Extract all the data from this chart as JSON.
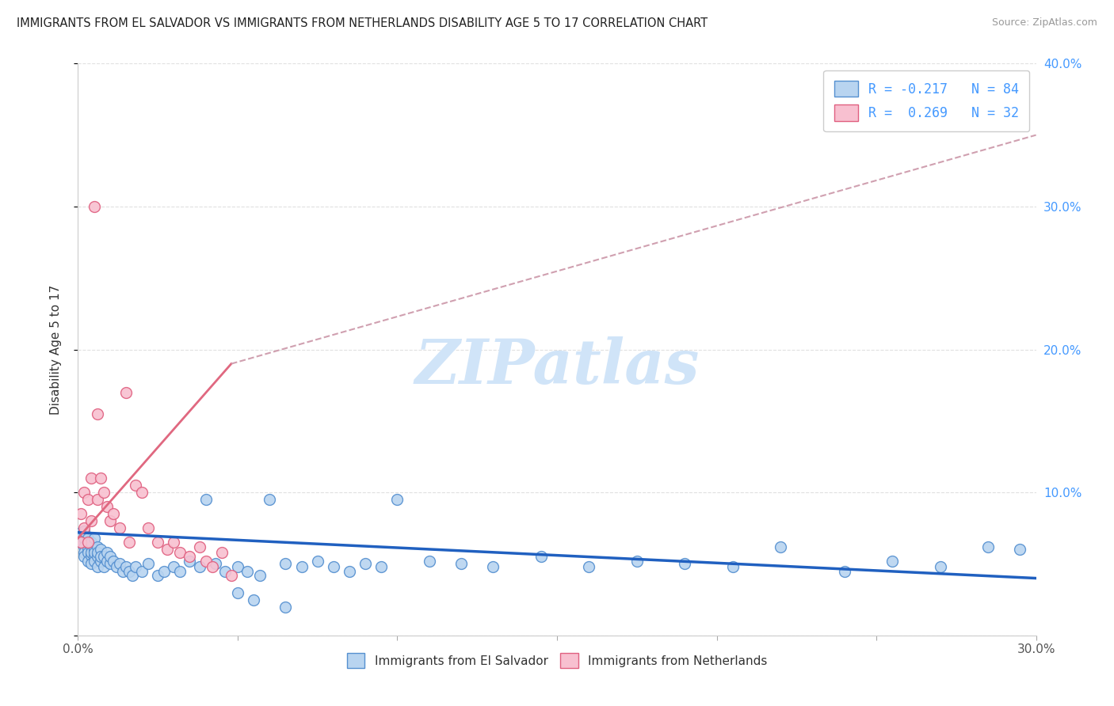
{
  "title": "IMMIGRANTS FROM EL SALVADOR VS IMMIGRANTS FROM NETHERLANDS DISABILITY AGE 5 TO 17 CORRELATION CHART",
  "source": "Source: ZipAtlas.com",
  "ylabel": "Disability Age 5 to 17",
  "series1_name": "Immigrants from El Salvador",
  "series2_name": "Immigrants from Netherlands",
  "series1_color": "#b8d4f0",
  "series2_color": "#f8c0d0",
  "series1_edge": "#5590d0",
  "series2_edge": "#e06080",
  "trend1_color": "#2060c0",
  "trend2_color": "#e06880",
  "trend2_dash_color": "#d0a0b0",
  "background_color": "#ffffff",
  "watermark": "ZIPatlas",
  "watermark_color": "#d0e4f8",
  "grid_color": "#e0e0e0",
  "xlim": [
    0.0,
    0.3
  ],
  "ylim": [
    0.0,
    0.4
  ],
  "legend_label1": "R = -0.217   N = 84",
  "legend_label2": "R =  0.269   N = 32",
  "legend_text_color": "#4499ff",
  "el_salvador_x": [
    0.001,
    0.001,
    0.001,
    0.002,
    0.002,
    0.002,
    0.002,
    0.002,
    0.003,
    0.003,
    0.003,
    0.003,
    0.003,
    0.004,
    0.004,
    0.004,
    0.004,
    0.004,
    0.005,
    0.005,
    0.005,
    0.005,
    0.005,
    0.006,
    0.006,
    0.006,
    0.006,
    0.007,
    0.007,
    0.007,
    0.008,
    0.008,
    0.009,
    0.009,
    0.01,
    0.01,
    0.011,
    0.012,
    0.013,
    0.014,
    0.015,
    0.016,
    0.017,
    0.018,
    0.02,
    0.022,
    0.025,
    0.027,
    0.03,
    0.032,
    0.035,
    0.038,
    0.04,
    0.043,
    0.046,
    0.05,
    0.053,
    0.057,
    0.06,
    0.065,
    0.07,
    0.075,
    0.08,
    0.085,
    0.09,
    0.095,
    0.1,
    0.11,
    0.12,
    0.13,
    0.145,
    0.16,
    0.175,
    0.19,
    0.205,
    0.22,
    0.24,
    0.255,
    0.27,
    0.285,
    0.295,
    0.05,
    0.055,
    0.065
  ],
  "el_salvador_y": [
    0.07,
    0.065,
    0.072,
    0.068,
    0.062,
    0.058,
    0.073,
    0.055,
    0.06,
    0.065,
    0.058,
    0.052,
    0.068,
    0.056,
    0.062,
    0.05,
    0.065,
    0.058,
    0.055,
    0.06,
    0.052,
    0.068,
    0.058,
    0.055,
    0.062,
    0.048,
    0.058,
    0.052,
    0.06,
    0.055,
    0.055,
    0.048,
    0.052,
    0.058,
    0.05,
    0.055,
    0.052,
    0.048,
    0.05,
    0.045,
    0.048,
    0.045,
    0.042,
    0.048,
    0.045,
    0.05,
    0.042,
    0.045,
    0.048,
    0.045,
    0.052,
    0.048,
    0.095,
    0.05,
    0.045,
    0.048,
    0.045,
    0.042,
    0.095,
    0.05,
    0.048,
    0.052,
    0.048,
    0.045,
    0.05,
    0.048,
    0.095,
    0.052,
    0.05,
    0.048,
    0.055,
    0.048,
    0.052,
    0.05,
    0.048,
    0.062,
    0.045,
    0.052,
    0.048,
    0.062,
    0.06,
    0.03,
    0.025,
    0.02
  ],
  "netherlands_x": [
    0.001,
    0.001,
    0.002,
    0.002,
    0.003,
    0.003,
    0.004,
    0.004,
    0.005,
    0.006,
    0.006,
    0.007,
    0.008,
    0.009,
    0.01,
    0.011,
    0.013,
    0.015,
    0.016,
    0.018,
    0.02,
    0.022,
    0.025,
    0.028,
    0.03,
    0.032,
    0.035,
    0.038,
    0.04,
    0.042,
    0.045,
    0.048
  ],
  "netherlands_y": [
    0.085,
    0.065,
    0.1,
    0.075,
    0.095,
    0.065,
    0.11,
    0.08,
    0.3,
    0.155,
    0.095,
    0.11,
    0.1,
    0.09,
    0.08,
    0.085,
    0.075,
    0.17,
    0.065,
    0.105,
    0.1,
    0.075,
    0.065,
    0.06,
    0.065,
    0.058,
    0.055,
    0.062,
    0.052,
    0.048,
    0.058,
    0.042
  ],
  "trend1_x0": 0.0,
  "trend1_y0": 0.072,
  "trend1_x1": 0.3,
  "trend1_y1": 0.04,
  "trend2_solid_x0": 0.0,
  "trend2_solid_y0": 0.068,
  "trend2_solid_x1": 0.048,
  "trend2_solid_y1": 0.19,
  "trend2_dash_x0": 0.048,
  "trend2_dash_y0": 0.19,
  "trend2_dash_x1": 0.3,
  "trend2_dash_y1": 0.35
}
